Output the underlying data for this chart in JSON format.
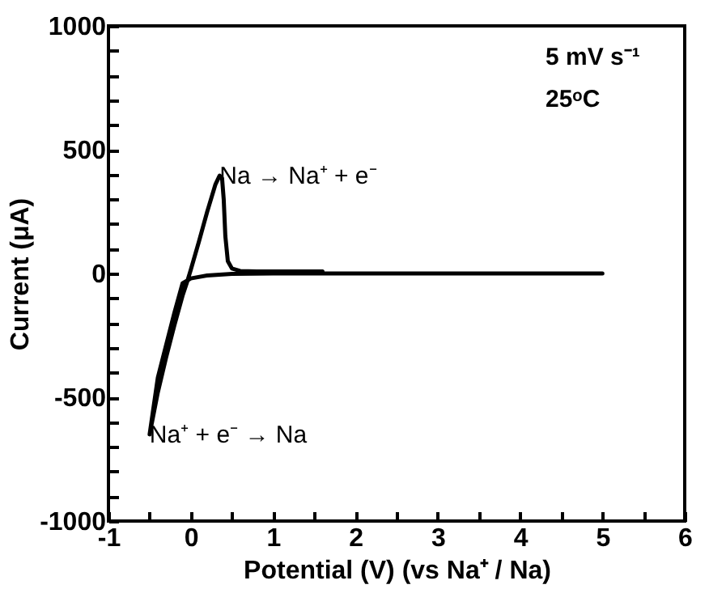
{
  "chart_data": {
    "type": "line",
    "xlabel": "Potential (V) (vs Na⁺ /  Na)",
    "ylabel": "Current  (μA)",
    "x": [
      5,
      4,
      3,
      2,
      1,
      0.5,
      0.2,
      0,
      -0.1,
      -0.2,
      -0.3,
      -0.4,
      -0.5,
      -0.4,
      -0.3,
      -0.2,
      -0.1,
      -0.05,
      0,
      0.1,
      0.2,
      0.3,
      0.35,
      0.38,
      0.4,
      0.42,
      0.45,
      0.5,
      0.6,
      0.8,
      1.2,
      1.6
    ],
    "series": [
      {
        "color": "#000000",
        "values": [
          0,
          0,
          0,
          0,
          0,
          -2,
          -8,
          -20,
          -40,
          -160,
          -290,
          -420,
          -650,
          -480,
          -340,
          -210,
          -90,
          -40,
          15,
          130,
          250,
          360,
          395,
          385,
          300,
          150,
          50,
          20,
          10,
          8,
          8,
          8
        ]
      }
    ],
    "xlim": [
      -1,
      6
    ],
    "ylim": [
      -1000,
      1000
    ],
    "xticks": [
      -1,
      {
        "value": -0.5,
        "label": null
      },
      0,
      {
        "value": 0.5,
        "label": null
      },
      1,
      {
        "value": 1.5,
        "label": null
      },
      2,
      {
        "value": 2.5,
        "label": null
      },
      3,
      {
        "value": 3.5,
        "label": null
      },
      4,
      {
        "value": 4.5,
        "label": null
      },
      5,
      {
        "value": 5.5,
        "label": null
      },
      6
    ],
    "yticks": [
      -1000,
      {
        "value": -900,
        "label": null
      },
      {
        "value": -800,
        "label": null
      },
      {
        "value": -700,
        "label": null
      },
      {
        "value": -600,
        "label": null
      },
      -500,
      {
        "value": -400,
        "label": null
      },
      {
        "value": -300,
        "label": null
      },
      {
        "value": -200,
        "label": null
      },
      {
        "value": -100,
        "label": null
      },
      0,
      {
        "value": 100,
        "label": null
      },
      {
        "value": 200,
        "label": null
      },
      {
        "value": 300,
        "label": null
      },
      {
        "value": 400,
        "label": null
      },
      500,
      {
        "value": 600,
        "label": null
      },
      {
        "value": 700,
        "label": null
      },
      {
        "value": 800,
        "label": null
      },
      {
        "value": 900,
        "label": null
      },
      1000
    ],
    "grid": false,
    "marker": "none",
    "line_style": "solid",
    "annotations": [
      {
        "text": "Na → Na⁺ + e⁻",
        "x": 0.35,
        "y": 395
      },
      {
        "text": "Na⁺ + e⁻ → Na",
        "x": -0.5,
        "y": -650
      },
      "5 mV s⁻¹",
      "25ᵒC"
    ]
  }
}
